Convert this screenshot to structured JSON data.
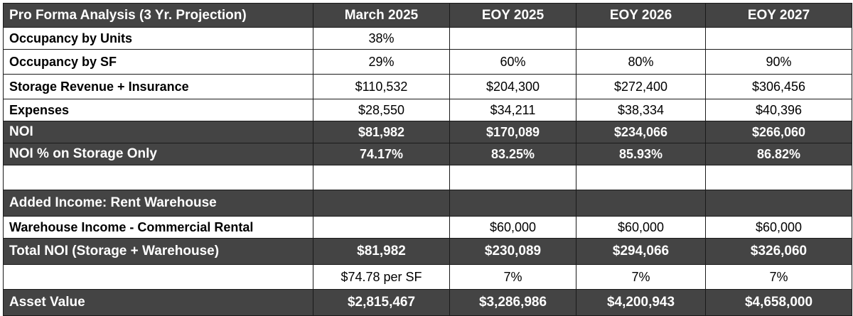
{
  "table": {
    "header": [
      "Pro Forma Analysis (3 Yr. Projection)",
      "March 2025",
      "EOY 2025",
      "EOY 2026",
      "EOY 2027"
    ],
    "rows": [
      {
        "label": "Occupancy by Units",
        "values": [
          "38%",
          "",
          "",
          ""
        ]
      },
      {
        "label": "Occupancy by SF",
        "values": [
          "29%",
          "60%",
          "80%",
          "90%"
        ]
      },
      {
        "label": "Storage Revenue + Insurance",
        "values": [
          "$110,532",
          "$204,300",
          "$272,400",
          "$306,456"
        ]
      },
      {
        "label": "Expenses",
        "values": [
          "$28,550",
          "$34,211",
          "$38,334",
          "$40,396"
        ]
      },
      {
        "label": "NOI",
        "values": [
          "$81,982",
          "$170,089",
          "$234,066",
          "$266,060"
        ]
      },
      {
        "label": "NOI % on Storage Only",
        "values": [
          "74.17%",
          "83.25%",
          "85.93%",
          "86.82%"
        ]
      },
      {
        "label": "",
        "values": [
          "",
          "",
          "",
          ""
        ]
      },
      {
        "label": "Added Income: Rent Warehouse",
        "values": [
          "",
          "",
          "",
          ""
        ]
      },
      {
        "label": "Warehouse Income - Commercial Rental",
        "values": [
          "",
          "$60,000",
          "$60,000",
          "$60,000"
        ]
      },
      {
        "label": "Total NOI (Storage + Warehouse)",
        "values": [
          "$81,982",
          "$230,089",
          "$294,066",
          "$326,060"
        ]
      },
      {
        "label": "",
        "values": [
          "$74.78 per SF",
          "7%",
          "7%",
          "7%"
        ]
      },
      {
        "label": "Asset Value",
        "values": [
          "$2,815,467",
          "$3,286,986",
          "$4,200,943",
          "$4,658,000"
        ]
      }
    ]
  },
  "colors": {
    "dark_row": "#444444",
    "dark_text": "#ffffff",
    "border": "#1a1a1a"
  }
}
